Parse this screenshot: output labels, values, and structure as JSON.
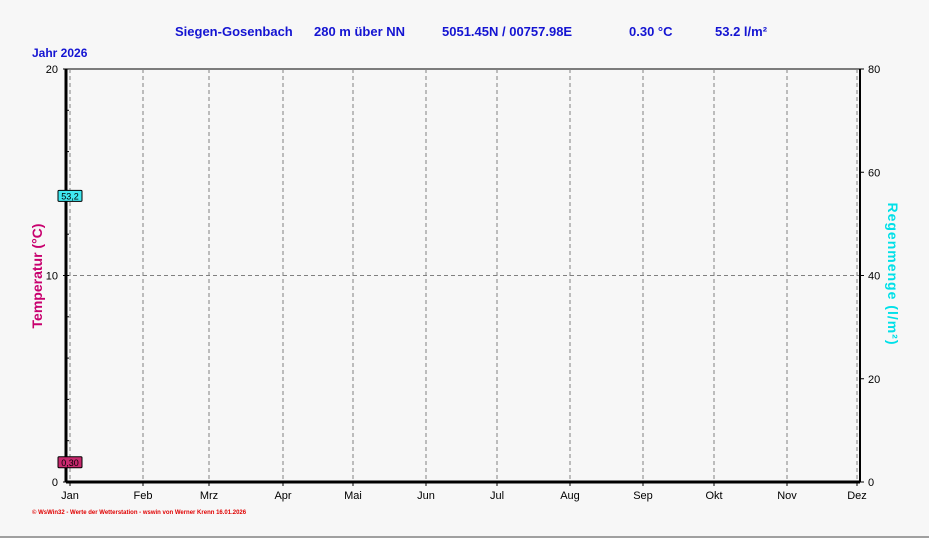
{
  "header": {
    "station": "Siegen-Gosenbach",
    "altitude": "280 m über NN",
    "coords": "5051.45N / 00757.98E",
    "temp": "0.30 °C",
    "rain": "53.2 l/m²"
  },
  "year_label": "Jahr  2026",
  "footer": "© WsWin32  -  Werte der Wetterstation  -  wswin von Werner Krenn  16.01.2026",
  "chart_data": {
    "type": "line",
    "categories": [
      "Jan",
      "Feb",
      "Mrz",
      "Apr",
      "Mai",
      "Jun",
      "Jul",
      "Aug",
      "Sep",
      "Okt",
      "Nov",
      "Dez"
    ],
    "ylabel": "Temperatur  (°C)",
    "y2label": "Regenmenge  (l/m²)",
    "ylim": [
      0,
      20
    ],
    "y2lim": [
      0,
      80
    ],
    "yticks": [
      "0",
      "10",
      "20"
    ],
    "y2ticks": [
      "0",
      "20",
      "40",
      "60",
      "80"
    ],
    "grid": true,
    "markers": [
      {
        "label": "0,30",
        "value": 0.3,
        "axis": "left",
        "color": "#c8286e"
      },
      {
        "label": "53,2",
        "value": 53.2,
        "axis": "right",
        "color": "#40e8f0"
      }
    ],
    "colors": {
      "temp": "#c8006e",
      "rain": "#00e0e8"
    }
  }
}
